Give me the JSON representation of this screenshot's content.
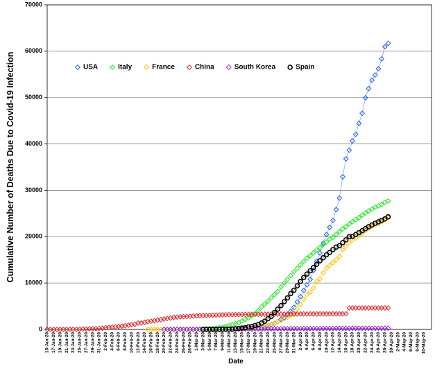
{
  "chart_data": {
    "type": "line",
    "y_label": "Cumulative Number of Deaths Due to Covid-19 Infection",
    "x_label": "Date",
    "categories": [
      "15-Jan-20",
      null,
      "17-Jan-20",
      null,
      "19-Jan-20",
      null,
      "21-Jan-20",
      null,
      "23-Jan-20",
      null,
      "25-Jan-20",
      null,
      "27-Jan-20",
      null,
      "29-Jan-20",
      null,
      "31-Jan-20",
      null,
      "2-Feb-20",
      null,
      "4-Feb-20",
      null,
      "6-Feb-20",
      null,
      "8-Feb-20",
      null,
      "10-Feb-20",
      null,
      "12-Feb-20",
      null,
      "14-Feb-20",
      null,
      "16-Feb-20",
      null,
      "18-Feb-20",
      null,
      "20-Feb-20",
      null,
      "22-Feb-20",
      null,
      "24-Feb-20",
      null,
      "26-Feb-20",
      null,
      "28-Feb-20",
      null,
      "1-Mar-20",
      null,
      "3-Mar-20",
      null,
      "5-Mar-20",
      null,
      "7-Mar-20",
      null,
      "9-Mar-20",
      null,
      "11-Mar-20",
      null,
      "13-Mar-20",
      null,
      "15-Mar-20",
      null,
      "17-Mar-20",
      null,
      "19-Mar-20",
      null,
      "21-Mar-20",
      null,
      "23-Mar-20",
      null,
      "25-Mar-20",
      null,
      "27-Mar-20",
      null,
      "29-Mar-20",
      null,
      "31-Mar-20",
      null,
      "2-Apr-20",
      null,
      "4-Apr-20",
      null,
      "6-Apr-20",
      null,
      "8-Apr-20",
      null,
      "10-Apr-20",
      null,
      "12-Apr-20",
      null,
      "14-Apr-20",
      null,
      "16-Apr-20",
      null,
      "18-Apr-20",
      null,
      "20-Apr-20",
      null,
      "22-Apr-20",
      null,
      "24-Apr-20",
      null,
      "26-Apr-20",
      null,
      "28-Apr-20",
      null,
      "30-Apr-20",
      null,
      "2-May-20",
      null,
      "4-May-20",
      null,
      "6-May-20",
      null,
      "8-May-20",
      null,
      "10-May-20"
    ],
    "ylim": [
      0,
      70000
    ],
    "yticks": [
      0,
      10000,
      20000,
      30000,
      40000,
      50000,
      60000,
      70000
    ],
    "grid": true,
    "legend": "upper left",
    "series": [
      {
        "name": "USA",
        "color": "#1a5cff",
        "marker": "diamond",
        "values": [
          null,
          null,
          null,
          null,
          null,
          null,
          null,
          null,
          null,
          null,
          null,
          null,
          null,
          null,
          null,
          null,
          null,
          null,
          null,
          null,
          null,
          null,
          null,
          null,
          null,
          null,
          null,
          null,
          null,
          null,
          null,
          null,
          null,
          null,
          null,
          null,
          null,
          null,
          null,
          null,
          null,
          null,
          null,
          null,
          null,
          1,
          1,
          6,
          9,
          11,
          12,
          15,
          19,
          22,
          26,
          30,
          38,
          41,
          48,
          58,
          73,
          107,
          150,
          205,
          260,
          343,
          456,
          578,
          783,
          1027,
          1295,
          1695,
          2191,
          2509,
          3166,
          3889,
          4757,
          5926,
          7087,
          8407,
          9619,
          10783,
          12722,
          14695,
          16478,
          18586,
          20463,
          22020,
          23529,
          25831,
          28325,
          32916,
          36773,
          38664,
          40661,
          42094,
          44444,
          46622,
          49954,
          51949,
          53755,
          54881,
          56219,
          58355,
          60967,
          61700,
          null,
          null,
          null,
          null,
          null,
          null,
          null,
          null,
          null,
          null,
          null
        ]
      },
      {
        "name": "Italy",
        "color": "#22e622",
        "marker": "diamond",
        "values": [
          null,
          null,
          null,
          null,
          null,
          null,
          null,
          null,
          null,
          null,
          null,
          null,
          null,
          null,
          null,
          null,
          null,
          null,
          null,
          null,
          null,
          null,
          null,
          null,
          null,
          null,
          null,
          null,
          null,
          null,
          null,
          null,
          null,
          null,
          null,
          null,
          null,
          1,
          2,
          3,
          7,
          10,
          12,
          17,
          21,
          29,
          34,
          52,
          79,
          107,
          148,
          197,
          233,
          366,
          463,
          631,
          827,
          1016,
          1266,
          1441,
          1809,
          2158,
          2503,
          2978,
          3405,
          4032,
          4825,
          5476,
          6077,
          6820,
          7503,
          8165,
          9134,
          10023,
          10779,
          11591,
          12428,
          13155,
          13915,
          14681,
          15362,
          15887,
          16523,
          17127,
          17669,
          18279,
          18849,
          19468,
          19899,
          20465,
          21067,
          21645,
          22170,
          22745,
          23227,
          23660,
          24114,
          24648,
          25085,
          25549,
          25969,
          26384,
          26644,
          26977,
          27359,
          27682,
          null,
          null,
          null,
          null,
          null,
          null,
          null,
          null,
          null,
          null,
          null
        ]
      },
      {
        "name": "France",
        "color": "#ffc20e",
        "marker": "diamond",
        "values": [
          null,
          null,
          null,
          null,
          null,
          null,
          null,
          null,
          null,
          null,
          null,
          null,
          null,
          null,
          null,
          null,
          null,
          null,
          null,
          null,
          null,
          null,
          null,
          null,
          null,
          null,
          null,
          null,
          null,
          null,
          null,
          1,
          1,
          1,
          1,
          1,
          1,
          1,
          1,
          1,
          1,
          1,
          2,
          2,
          2,
          2,
          2,
          3,
          4,
          4,
          6,
          9,
          11,
          19,
          19,
          33,
          48,
          48,
          79,
          91,
          91,
          148,
          148,
          148,
          243,
          450,
          562,
          674,
          860,
          1100,
          1331,
          1696,
          1995,
          2314,
          2606,
          3024,
          3523,
          4403,
          5387,
          6507,
          7560,
          8078,
          8911,
          10328,
          10869,
          12210,
          13197,
          13832,
          14393,
          14967,
          15729,
          17167,
          17920,
          18681,
          19323,
          19718,
          20265,
          20796,
          21340,
          21856,
          22245,
          22614,
          22856,
          23293,
          23660,
          24087,
          null,
          null,
          null,
          null,
          null,
          null,
          null,
          null,
          null,
          null,
          null
        ]
      },
      {
        "name": "China",
        "color": "#e02424",
        "marker": "diamond",
        "values": [
          2,
          2,
          2,
          3,
          3,
          6,
          9,
          17,
          18,
          26,
          42,
          56,
          82,
          131,
          133,
          171,
          213,
          259,
          361,
          425,
          490,
          562,
          632,
          717,
          804,
          904,
          1011,
          1111,
          1368,
          1381,
          1524,
          1666,
          1772,
          1870,
          2006,
          2121,
          2239,
          2348,
          2445,
          2595,
          2665,
          2717,
          2746,
          2790,
          2837,
          2872,
          2914,
          2947,
          2983,
          3015,
          3044,
          3072,
          3100,
          3123,
          3139,
          3161,
          3172,
          3180,
          3193,
          3203,
          3217,
          3230,
          3241,
          3249,
          3253,
          3259,
          3274,
          3274,
          3281,
          3285,
          3291,
          3296,
          3299,
          3304,
          3308,
          3309,
          3316,
          3322,
          3326,
          3330,
          3333,
          3335,
          3335,
          3337,
          3339,
          3340,
          3343,
          3343,
          3345,
          3345,
          3345,
          3346,
          3346,
          4636,
          4636,
          4636,
          4636,
          4636,
          4636,
          4636,
          4637,
          4637,
          4637,
          4637,
          4637,
          4637,
          null,
          null,
          null,
          null,
          null,
          null,
          null,
          null,
          null,
          null,
          null
        ]
      },
      {
        "name": "South Korea",
        "color": "#9a1fd6",
        "marker": "diamond",
        "values": [
          null,
          null,
          null,
          null,
          null,
          null,
          null,
          null,
          null,
          null,
          null,
          null,
          null,
          null,
          null,
          null,
          null,
          null,
          null,
          null,
          null,
          null,
          null,
          null,
          null,
          null,
          null,
          null,
          null,
          null,
          null,
          null,
          null,
          null,
          null,
          null,
          1,
          2,
          2,
          6,
          8,
          10,
          12,
          13,
          13,
          16,
          17,
          28,
          28,
          35,
          35,
          42,
          44,
          50,
          53,
          54,
          60,
          66,
          66,
          72,
          75,
          75,
          81,
          84,
          91,
          94,
          102,
          104,
          111,
          120,
          126,
          131,
          139,
          144,
          152,
          158,
          162,
          165,
          169,
          174,
          177,
          183,
          186,
          192,
          200,
          204,
          208,
          211,
          214,
          217,
          222,
          225,
          229,
          230,
          232,
          234,
          236,
          237,
          238,
          240,
          240,
          242,
          243,
          244,
          246,
          247,
          null,
          null,
          null,
          null,
          null,
          null,
          null,
          null,
          null,
          null,
          null
        ]
      },
      {
        "name": "Spain",
        "color": "#000000",
        "marker": "circle",
        "values": [
          null,
          null,
          null,
          null,
          null,
          null,
          null,
          null,
          null,
          null,
          null,
          null,
          null,
          null,
          null,
          null,
          null,
          null,
          null,
          null,
          null,
          null,
          null,
          null,
          null,
          null,
          null,
          null,
          null,
          null,
          null,
          null,
          null,
          null,
          null,
          null,
          null,
          null,
          null,
          null,
          null,
          null,
          null,
          null,
          null,
          null,
          null,
          null,
          1,
          2,
          3,
          5,
          10,
          17,
          28,
          35,
          54,
          55,
          133,
          195,
          289,
          342,
          533,
          623,
          830,
          1043,
          1375,
          1772,
          2311,
          2808,
          3647,
          4365,
          5138,
          5982,
          6803,
          7716,
          8464,
          9387,
          10348,
          11198,
          11947,
          12641,
          13341,
          14045,
          14792,
          15447,
          16081,
          16606,
          17209,
          17756,
          18056,
          18708,
          19315,
          20002,
          20043,
          20453,
          20852,
          21282,
          21717,
          22157,
          22524,
          22902,
          23190,
          23521,
          23822,
          24275,
          null,
          null,
          null,
          null,
          null,
          null,
          null,
          null,
          null,
          null,
          null
        ]
      }
    ]
  }
}
